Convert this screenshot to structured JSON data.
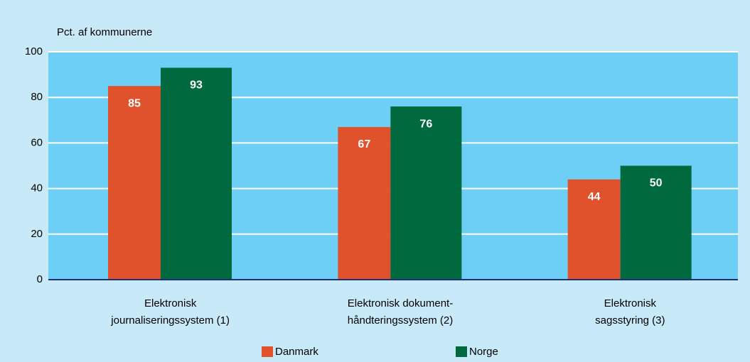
{
  "chart_data": {
    "type": "bar",
    "y_label": "Pct. af kommunerne",
    "categories": [
      [
        "Elektronisk",
        "journaliseringssystem (1)"
      ],
      [
        "Elektronisk dokument-",
        "håndteringssystem (2)"
      ],
      [
        "Elektronisk",
        "sagsstyring (3)"
      ]
    ],
    "series": [
      {
        "name": "Danmark",
        "color": "#e0522b",
        "values": [
          85,
          67,
          44
        ]
      },
      {
        "name": "Norge",
        "color": "#00693e",
        "values": [
          93,
          76,
          50
        ]
      }
    ],
    "ylim": [
      0,
      100
    ],
    "yticks": [
      0,
      20,
      40,
      60,
      80,
      100
    ],
    "grid": true
  }
}
